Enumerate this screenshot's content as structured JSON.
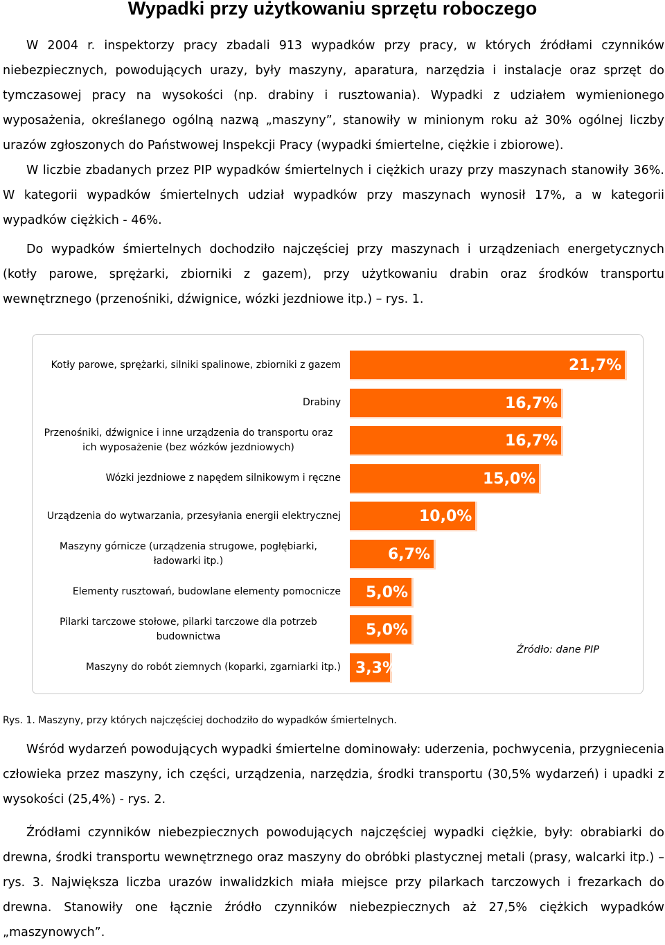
{
  "title": "Wypadki przy użytkowaniu sprzętu roboczego",
  "paragraphs": {
    "p1": "W 2004 r. inspektorzy pracy zbadali 913 wypadków przy pracy, w których źródłami czynników niebezpiecznych, powodujących urazy, były maszyny, aparatura, narzędzia i instalacje oraz sprzęt do tymczasowej pracy na wysokości (np. drabiny i rusztowania). Wypadki z udziałem wymienionego wyposażenia, określanego ogólną nazwą „maszyny”, stanowiły w minionym roku aż 30% ogólnej liczby urazów zgłoszonych do Państwowej Inspekcji Pracy (wypadki śmiertelne, ciężkie i zbiorowe).",
    "p2": "W liczbie zbadanych przez PIP wypadków śmiertelnych i ciężkich urazy przy maszynach stanowiły 36%. W kategorii wypadków śmiertelnych udział wypadków przy maszynach wynosił 17%, a w kategorii wypadków ciężkich - 46%.",
    "p3": "Do wypadków śmiertelnych dochodziło najczęściej przy maszynach i urządzeniach energetycznych (kotły parowe, sprężarki, zbiorniki z gazem), przy użytkowaniu drabin oraz środków transportu wewnętrznego (przenośniki, dźwignice, wózki jezdniowe itp.) – rys. 1.",
    "p4": "Wśród wydarzeń powodujących wypadki śmiertelne dominowały: uderzenia, pochwycenia, przygniecenia człowieka przez maszyny, ich części, urządzenia, narzędzia, środki transportu (30,5% wydarzeń) i upadki z wysokości (25,4%) - rys. 2.",
    "p5": "Źródłami czynników niebezpiecznych powodujących najczęściej wypadki ciężkie, były: obrabiarki do drewna, środki transportu wewnętrznego oraz maszyny do obróbki plastycznej metali (prasy, walcarki itp.) – rys. 3. Największa liczba urazów inwalidzkich miała miejsce przy pilarkach tarczowych i frezarkach do drewna. Stanowiły one łącznie źródło czynników niebezpiecznych aż 27,5% ciężkich wypadków „maszynowych”."
  },
  "chart_data": {
    "type": "bar",
    "orientation": "horizontal",
    "categories": [
      "Kotły parowe, sprężarki, silniki spalinowe, zbiorniki z gazem",
      "Drabiny",
      "Przenośniki, dźwignice i inne urządzenia do transportu oraz ich wyposażenie (bez wózków jezdniowych)",
      "Wózki jezdniowe z napędem silnikowym i ręczne",
      "Urządzenia do wytwarzania, przesyłania energii elektrycznej",
      "Maszyny górnicze (urządzenia strugowe, pogłębiarki, ładowarki itp.)",
      "Elementy rusztowań, budowlane elementy pomocnicze",
      "Pilarki tarczowe stołowe, pilarki tarczowe dla potrzeb budownictwa",
      "Maszyny do robót ziemnych (koparki, zgarniarki itp.)"
    ],
    "values": [
      21.7,
      16.7,
      16.7,
      15.0,
      10.0,
      6.7,
      5.0,
      5.0,
      3.3
    ],
    "value_labels": [
      "21,7%",
      "16,7%",
      "16,7%",
      "15,0%",
      "10,0%",
      "6,7%",
      "5,0%",
      "5,0%",
      "3,3%"
    ],
    "bar_color": "#ff6600",
    "grid": false,
    "legend": "none",
    "source_note": "Źródło: dane PIP"
  },
  "caption": "Rys. 1. Maszyny, przy których najczęściej dochodziło do wypadków śmiertelnych."
}
